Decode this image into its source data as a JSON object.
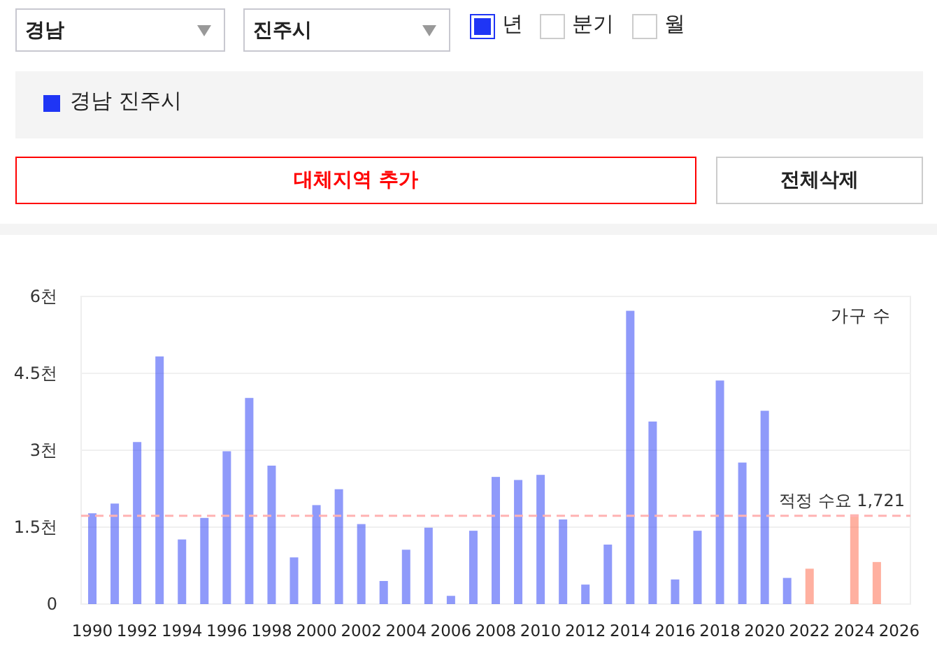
{
  "chart_data": {
    "type": "bar",
    "categories": [
      "1990",
      null,
      "1992",
      null,
      "1994",
      null,
      "1996",
      null,
      "1998",
      null,
      "2000",
      null,
      "2002",
      null,
      "2004",
      null,
      "2006",
      null,
      "2008",
      null,
      "2010",
      null,
      "2012",
      null,
      "2014",
      null,
      "2016",
      null,
      "2018",
      null,
      "2020",
      null,
      "2022",
      null,
      "2024",
      null,
      "2026"
    ],
    "series": [
      {
        "name": "경남 진주시",
        "color": "#1f35f5",
        "values": [
          1.77,
          1.96,
          3.16,
          4.83,
          1.26,
          1.68,
          2.98,
          4.02,
          2.7,
          0.91,
          1.93,
          2.24,
          1.56,
          0.45,
          1.06,
          1.49,
          0.16,
          1.43,
          2.48,
          2.42,
          2.52,
          1.65,
          0.38,
          1.16,
          5.72,
          3.56,
          0.48,
          1.43,
          4.36,
          2.76,
          3.77,
          0.51,
          0.69,
          null,
          1.75,
          0.82,
          null
        ],
        "colors": [
          "#1f35f5",
          "#1f35f5",
          "#1f35f5",
          "#1f35f5",
          "#1f35f5",
          "#1f35f5",
          "#1f35f5",
          "#1f35f5",
          "#1f35f5",
          "#1f35f5",
          "#1f35f5",
          "#1f35f5",
          "#1f35f5",
          "#1f35f5",
          "#1f35f5",
          "#1f35f5",
          "#1f35f5",
          "#1f35f5",
          "#1f35f5",
          "#1f35f5",
          "#1f35f5",
          "#1f35f5",
          "#1f35f5",
          "#1f35f5",
          "#1f35f5",
          "#1f35f5",
          "#1f35f5",
          "#1f35f5",
          "#1f35f5",
          "#1f35f5",
          "#1f35f5",
          "#1f35f5",
          "#ff6141",
          null,
          "#ff6141",
          "#ff6141",
          null
        ]
      }
    ],
    "ylabel": "가구 수",
    "ylim": [
      0,
      6
    ],
    "yticks": [
      0,
      {
        "value": 1.5,
        "label": "1.5천"
      },
      {
        "value": 3,
        "label": "3천"
      },
      {
        "value": 4.5,
        "label": "4.5천"
      },
      {
        "value": 6,
        "label": "6천"
      }
    ],
    "ref_lines": [
      {
        "axis": "y",
        "value": 1.721,
        "label": "적정 수요 1,721",
        "color": "#ffb3b3",
        "line_style": "dashed"
      }
    ],
    "grid": "y",
    "legend": "top",
    "annotations": [
      "경남",
      "진주시",
      "년",
      "분기",
      "월",
      "대체지역 추가",
      "전체삭제"
    ]
  }
}
